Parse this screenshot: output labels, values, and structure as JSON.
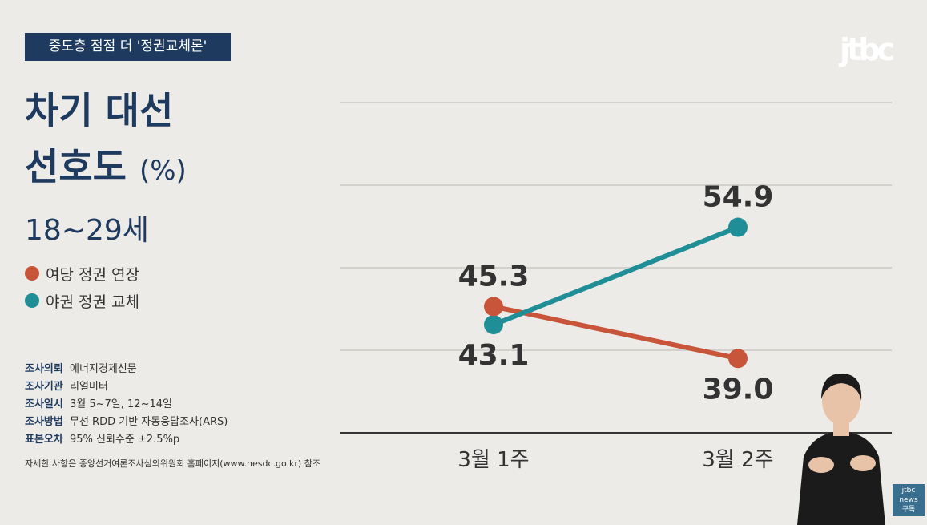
{
  "header": {
    "tag": "중도층 점점 더 '정권교체론'",
    "logo": "jtbc"
  },
  "title": {
    "line1": "차기 대선",
    "line2": "선호도",
    "unit": "(%)"
  },
  "subtitle": "18~29세",
  "legend": [
    {
      "label": "여당 정권 연장",
      "color": "#c8543a"
    },
    {
      "label": "야권 정권 교체",
      "color": "#1f8e96"
    }
  ],
  "survey_info": [
    {
      "key": "조사의뢰",
      "value": "에너지경제신문"
    },
    {
      "key": "조사기관",
      "value": "리얼미터"
    },
    {
      "key": "조사일시",
      "value": "3월 5~7일, 12~14일"
    },
    {
      "key": "조사방법",
      "value": "무선 RDD 기반 자동응답조사(ARS)"
    },
    {
      "key": "표본오차",
      "value": "95% 신뢰수준 ±2.5%p"
    }
  ],
  "note": "자세한 사항은 중앙선거여론조사심의위원회 홈페이지(www.nesdc.go.kr) 참조",
  "badge": {
    "line1": "jtbc",
    "line2": "news",
    "line3": "구독"
  },
  "chart_data": {
    "type": "line",
    "categories": [
      "3월 1주",
      "3월 2주"
    ],
    "series": [
      {
        "name": "여당 정권 연장",
        "values": [
          45.3,
          39.0
        ],
        "color": "#c8543a",
        "labels": [
          "45.3",
          "39.0"
        ]
      },
      {
        "name": "야권 정권 교체",
        "values": [
          43.1,
          54.9
        ],
        "color": "#1f8e96",
        "labels": [
          "43.1",
          "54.9"
        ]
      }
    ],
    "xlabel": "",
    "ylabel": "(%)",
    "ylim": [
      30,
      70
    ],
    "grid": true
  }
}
